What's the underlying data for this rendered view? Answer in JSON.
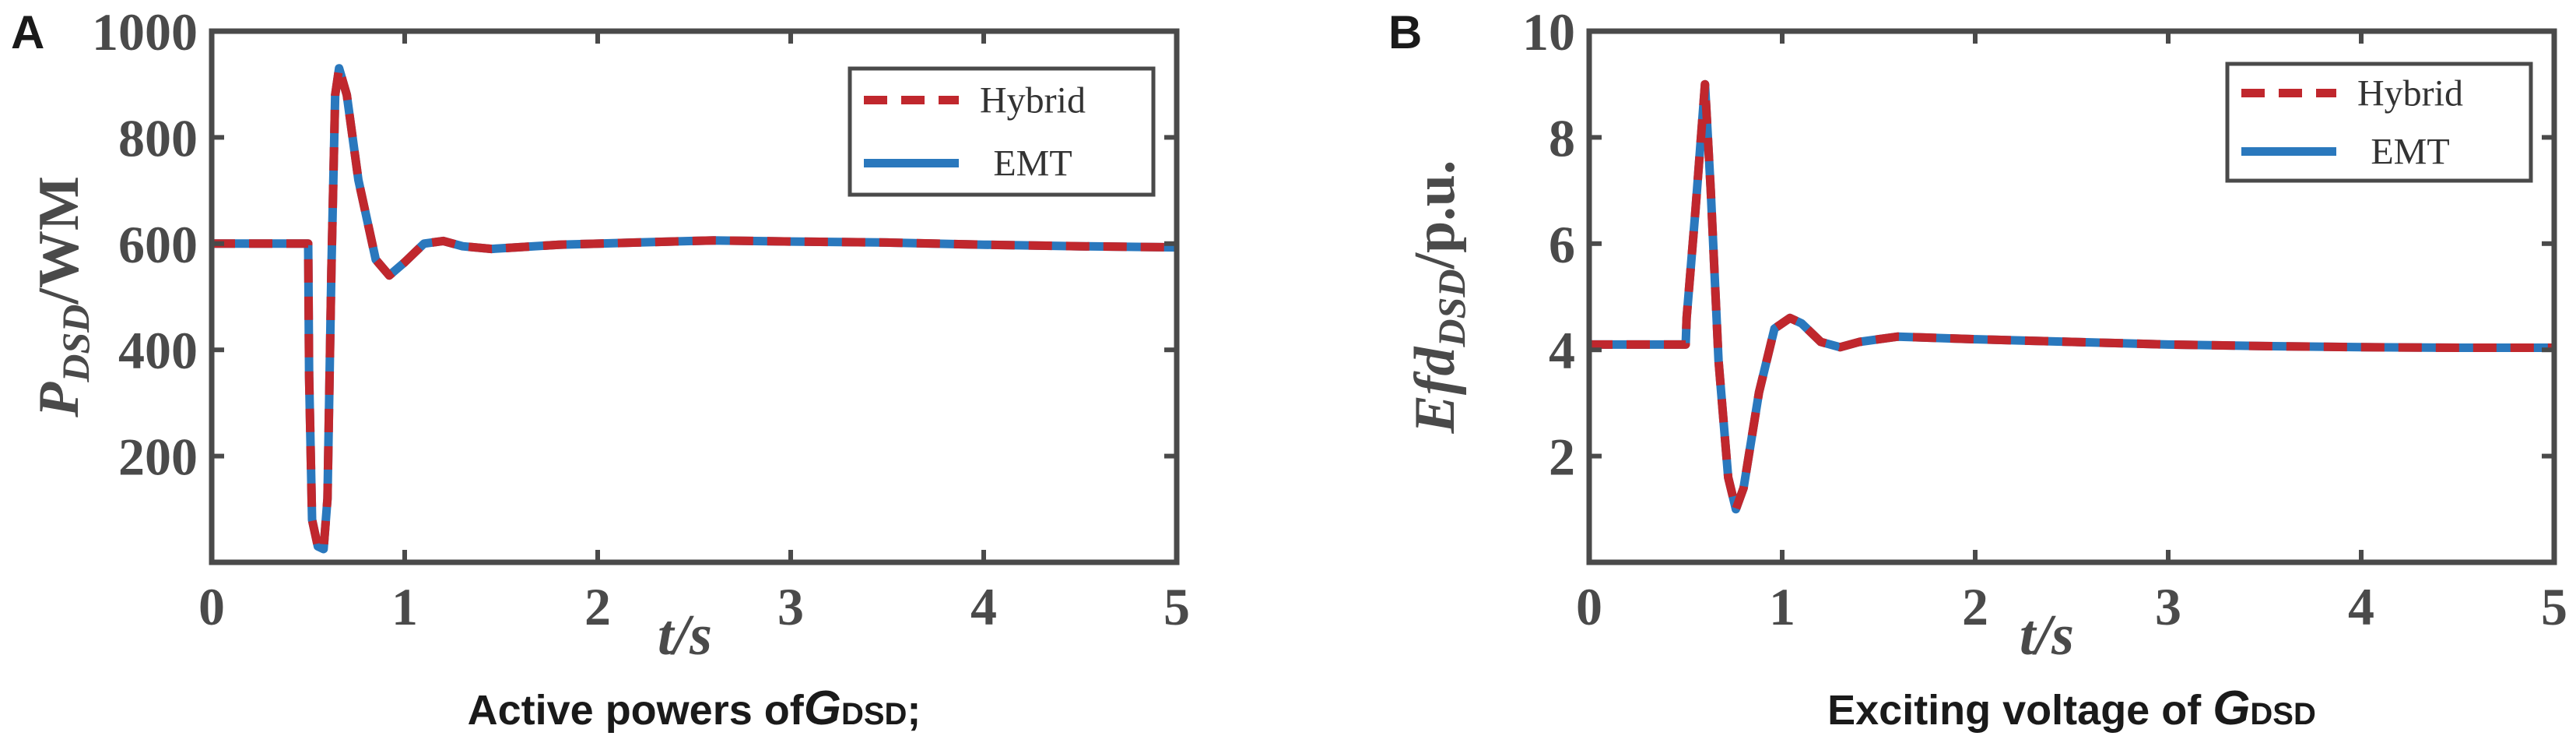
{
  "chart_data": [
    {
      "type": "line",
      "panel": "A",
      "caption": {
        "main": "Active powers of",
        "var": "G",
        "sub": "DSD",
        "tail": ";"
      },
      "xlabel": {
        "var": "t",
        "rest": "/s"
      },
      "ylabel": {
        "var": "P",
        "sub": "DSD",
        "rest": "/WM"
      },
      "xlim": [
        0,
        5
      ],
      "ylim": [
        0,
        1000
      ],
      "xticks": [
        "0",
        "1",
        "2",
        "3",
        "4",
        "5"
      ],
      "yticks": [
        "200",
        "400",
        "600",
        "800",
        "1000"
      ],
      "grid": false,
      "legend_position": "top-right",
      "legend": [
        "Hybrid",
        "EMT"
      ],
      "x": [
        0,
        0.5,
        0.505,
        0.52,
        0.55,
        0.58,
        0.6,
        0.62,
        0.64,
        0.66,
        0.7,
        0.76,
        0.85,
        0.92,
        1.0,
        1.1,
        1.2,
        1.3,
        1.45,
        1.8,
        2.2,
        2.6,
        3.0,
        3.5,
        4.0,
        4.5,
        5.0
      ],
      "series": [
        {
          "name": "Hybrid",
          "values": [
            600,
            600,
            350,
            80,
            30,
            25,
            120,
            550,
            880,
            930,
            880,
            720,
            570,
            540,
            565,
            600,
            605,
            595,
            590,
            598,
            602,
            606,
            604,
            602,
            598,
            595,
            593
          ]
        },
        {
          "name": "EMT",
          "values": [
            600,
            600,
            350,
            80,
            30,
            25,
            120,
            550,
            880,
            930,
            880,
            720,
            570,
            540,
            565,
            600,
            605,
            595,
            590,
            598,
            602,
            606,
            604,
            602,
            598,
            595,
            593
          ]
        }
      ]
    },
    {
      "type": "line",
      "panel": "B",
      "caption": {
        "main": "Exciting voltage of ",
        "var": "G",
        "sub": "DSD",
        "tail": ""
      },
      "xlabel": {
        "var": "t",
        "rest": "/s"
      },
      "ylabel": {
        "var": "Efd",
        "sub": "DSD",
        "rest": "/p.u."
      },
      "xlim": [
        0,
        5
      ],
      "ylim": [
        0,
        10
      ],
      "xticks": [
        "0",
        "1",
        "2",
        "3",
        "4",
        "5"
      ],
      "yticks": [
        "2",
        "4",
        "6",
        "8",
        "10"
      ],
      "grid": false,
      "legend_position": "top-right",
      "legend": [
        "Hybrid",
        "EMT"
      ],
      "x": [
        0,
        0.5,
        0.505,
        0.55,
        0.6,
        0.63,
        0.67,
        0.72,
        0.76,
        0.8,
        0.88,
        0.96,
        1.04,
        1.1,
        1.2,
        1.3,
        1.4,
        1.6,
        2.0,
        2.5,
        3.0,
        3.5,
        4.0,
        4.5,
        5.0
      ],
      "series": [
        {
          "name": "Hybrid",
          "values": [
            4.1,
            4.1,
            4.6,
            6.6,
            9.0,
            7.0,
            3.8,
            1.6,
            1.0,
            1.4,
            3.2,
            4.4,
            4.6,
            4.5,
            4.15,
            4.05,
            4.15,
            4.25,
            4.2,
            4.15,
            4.1,
            4.07,
            4.05,
            4.04,
            4.04
          ]
        },
        {
          "name": "EMT",
          "values": [
            4.1,
            4.1,
            4.6,
            6.6,
            9.0,
            7.0,
            3.8,
            1.6,
            1.0,
            1.4,
            3.2,
            4.4,
            4.6,
            4.5,
            4.15,
            4.05,
            4.15,
            4.25,
            4.2,
            4.15,
            4.1,
            4.07,
            4.05,
            4.04,
            4.04
          ]
        }
      ]
    }
  ],
  "colors": {
    "hybrid": "#c0272d",
    "emt": "#2a78bd",
    "axis": "#4a4a4a"
  }
}
